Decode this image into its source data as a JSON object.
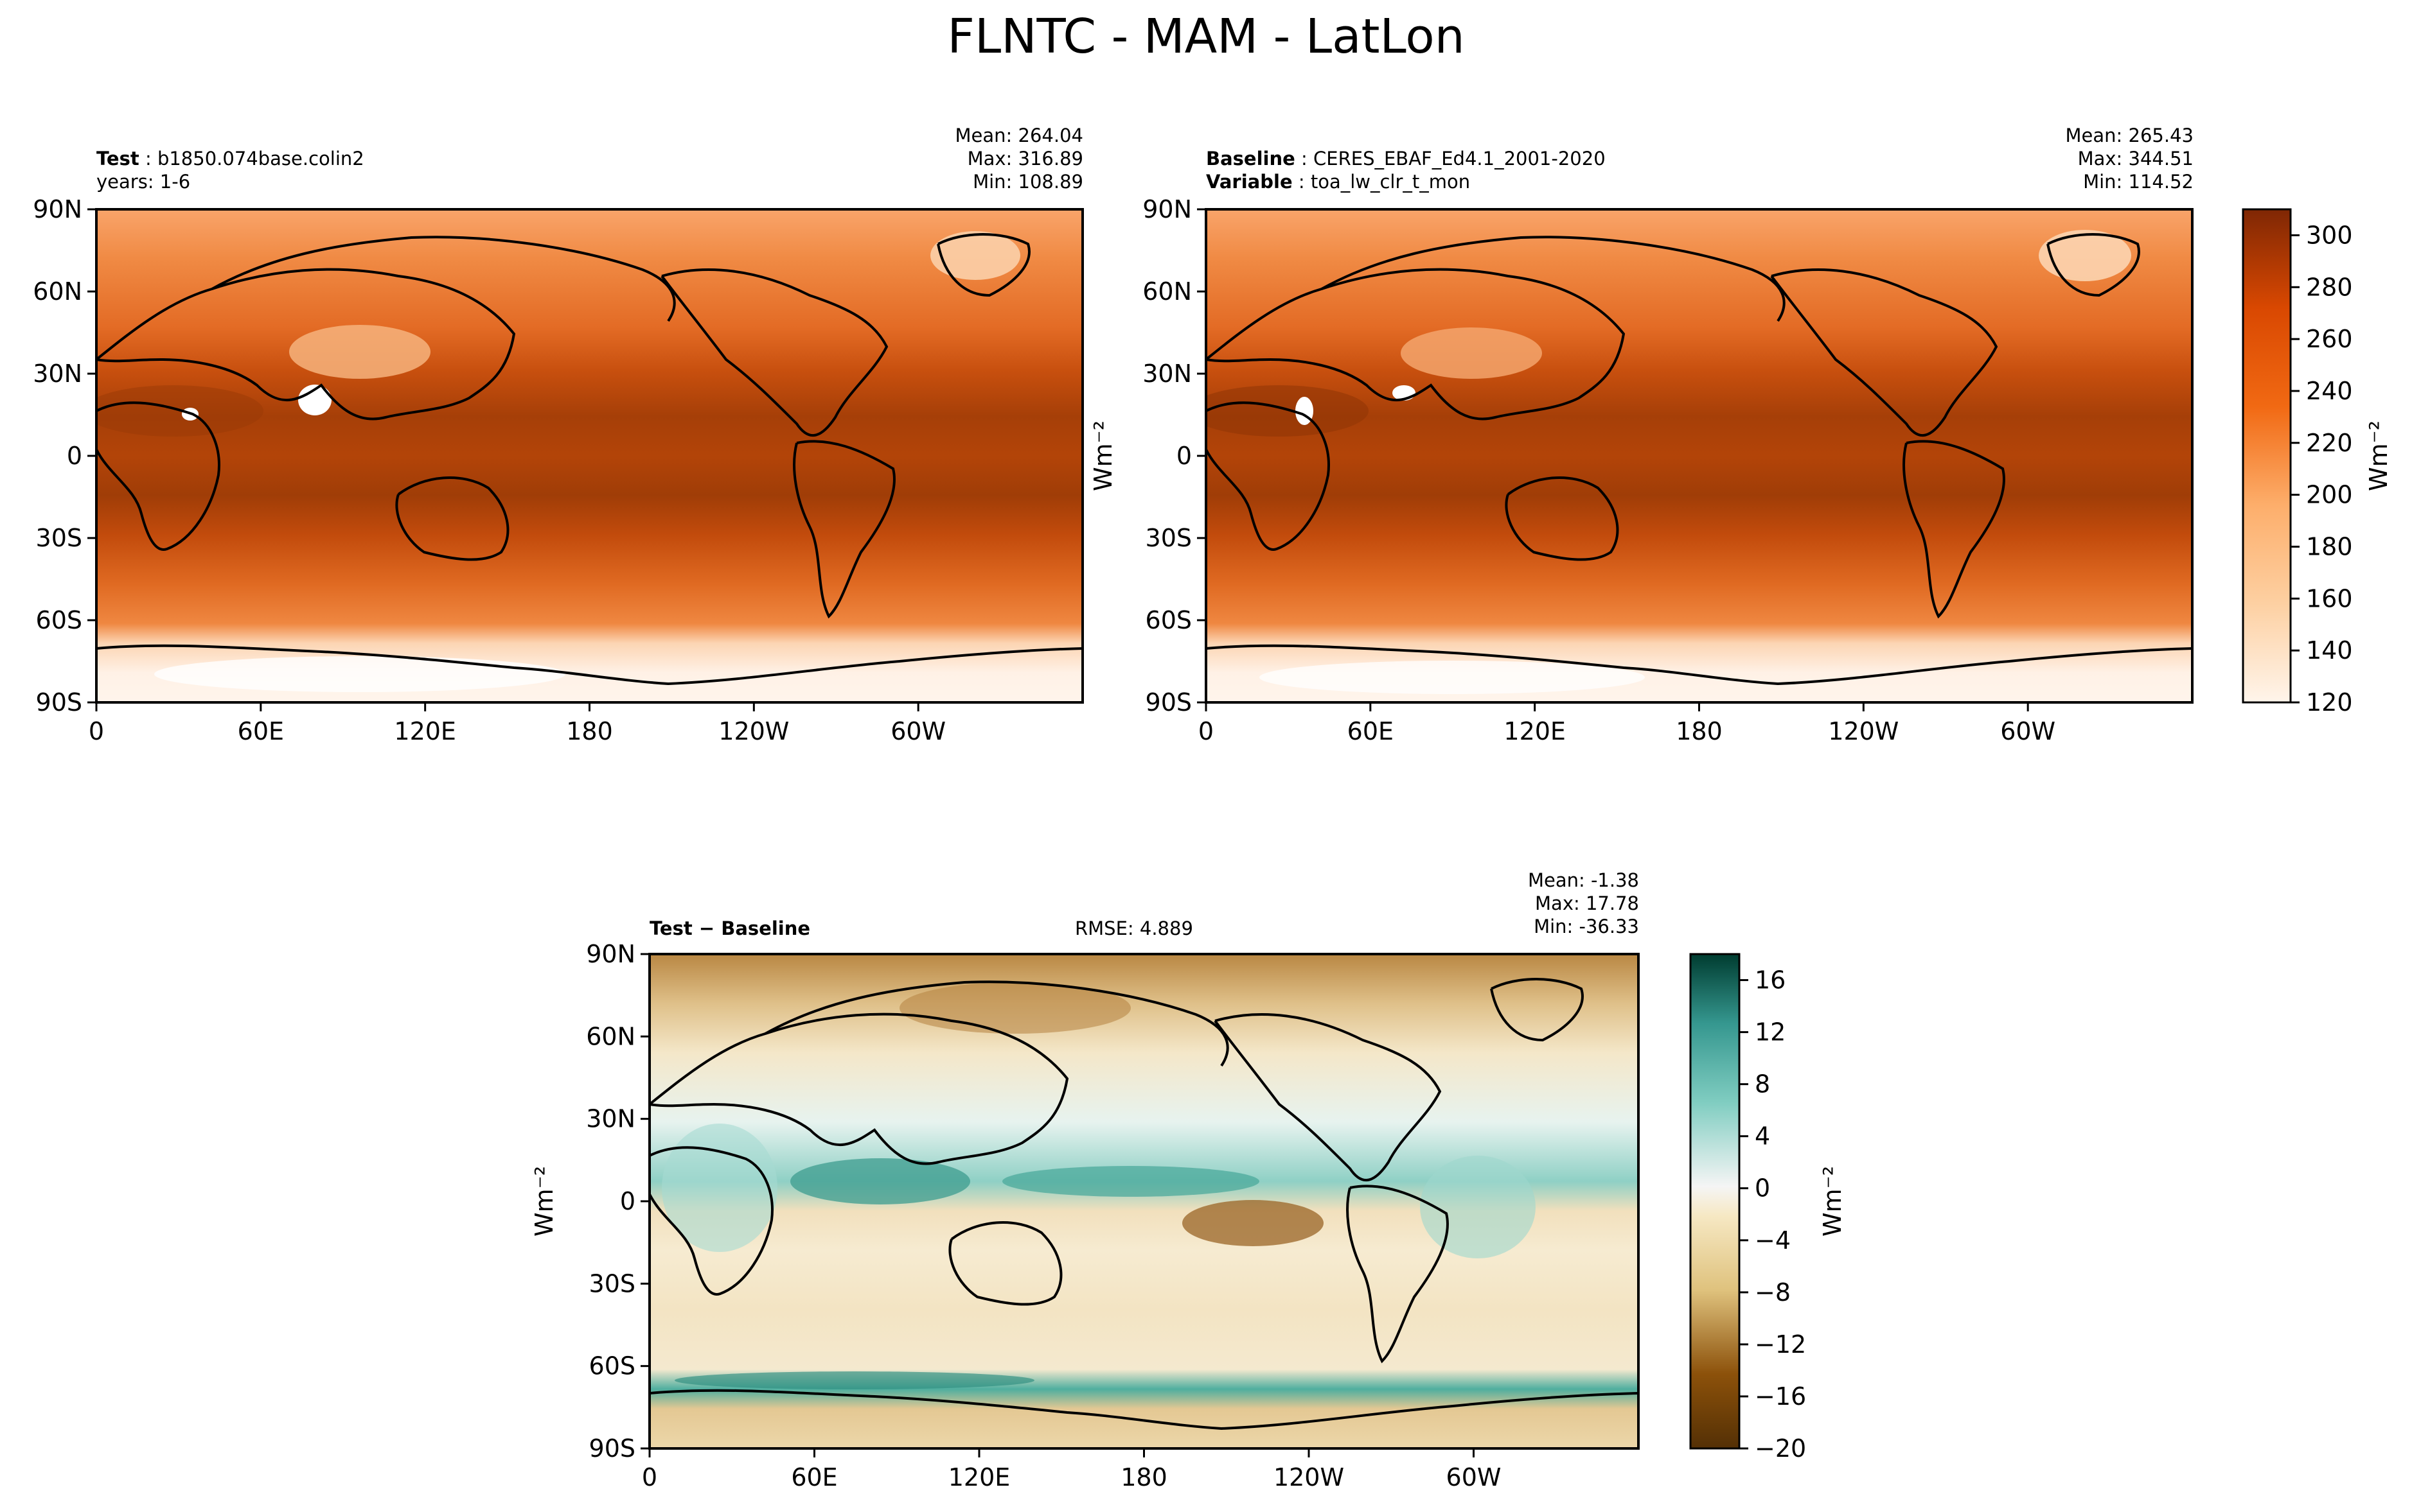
{
  "figure_title": "FLNTC - MAM - LatLon",
  "chart_data": [
    {
      "type": "heatmap",
      "panel": "test",
      "labels": [
        {
          "key": "Test",
          "value": "b1850.074base.colin2"
        },
        {
          "key": "",
          "value": "years: 1-6"
        }
      ],
      "stats": {
        "mean": "Mean: 264.04",
        "max": "Max: 316.89",
        "min": "Min: 108.89"
      },
      "xticks": [
        "0",
        "60E",
        "120E",
        "180",
        "120W",
        "60W"
      ],
      "yticks": [
        "90N",
        "60N",
        "30N",
        "0",
        "30S",
        "60S",
        "90S"
      ],
      "xlim": [
        0,
        360
      ],
      "ylim": [
        -90,
        90
      ],
      "ylabel": "Wm⁻²",
      "colormap": "Oranges",
      "colorbar_levels": [
        120,
        300
      ],
      "latitude_profile_estimate": [
        {
          "lat": 90,
          "value": 195
        },
        {
          "lat": 70,
          "value": 225
        },
        {
          "lat": 50,
          "value": 245
        },
        {
          "lat": 30,
          "value": 265
        },
        {
          "lat": 15,
          "value": 290
        },
        {
          "lat": 0,
          "value": 285
        },
        {
          "lat": -15,
          "value": 292
        },
        {
          "lat": -30,
          "value": 275
        },
        {
          "lat": -50,
          "value": 245
        },
        {
          "lat": -65,
          "value": 225
        },
        {
          "lat": -75,
          "value": 160
        },
        {
          "lat": -90,
          "value": 135
        }
      ]
    },
    {
      "type": "heatmap",
      "panel": "baseline",
      "labels": [
        {
          "key": "Baseline",
          "value": "CERES_EBAF_Ed4.1_2001-2020"
        },
        {
          "key": "Variable",
          "value": "toa_lw_clr_t_mon"
        }
      ],
      "stats": {
        "mean": "Mean: 265.43",
        "max": "Max: 344.51",
        "min": "Min: 114.52"
      },
      "xticks": [
        "0",
        "60E",
        "120E",
        "180",
        "120W",
        "60W"
      ],
      "yticks": [
        "90N",
        "60N",
        "30N",
        "0",
        "30S",
        "60S",
        "90S"
      ],
      "xlim": [
        0,
        360
      ],
      "ylim": [
        -90,
        90
      ],
      "colormap": "Oranges",
      "colorbar": {
        "ticks": [
          "300",
          "280",
          "260",
          "240",
          "220",
          "200",
          "180",
          "160",
          "140",
          "120"
        ],
        "range": [
          120,
          310
        ],
        "label": "Wm⁻²"
      }
    },
    {
      "type": "heatmap",
      "panel": "difference",
      "labels": [
        {
          "key": "Test",
          "value": "Baseline"
        }
      ],
      "rmse": "RMSE: 4.889",
      "stats": {
        "mean": "Mean: -1.38",
        "max": "Max: 17.78",
        "min": "Min: -36.33"
      },
      "xticks": [
        "0",
        "60E",
        "120E",
        "180",
        "120W",
        "60W"
      ],
      "yticks": [
        "90N",
        "60N",
        "30N",
        "0",
        "30S",
        "60S",
        "90S"
      ],
      "xlim": [
        0,
        360
      ],
      "ylim": [
        -90,
        90
      ],
      "ylabel": "Wm⁻²",
      "colormap": "BrBG",
      "colorbar": {
        "ticks": [
          "16",
          "12",
          "8",
          "4",
          "0",
          "−4",
          "−8",
          "−12",
          "−16",
          "−20"
        ],
        "range": [
          -20,
          18
        ],
        "label": "Wm⁻²"
      }
    }
  ]
}
